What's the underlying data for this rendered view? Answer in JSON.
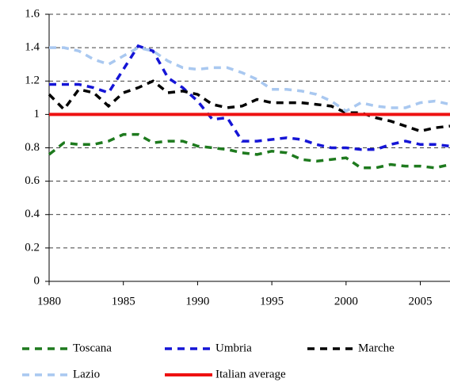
{
  "chart_data": {
    "type": "line",
    "x": [
      1980,
      1981,
      1982,
      1983,
      1984,
      1985,
      1986,
      1987,
      1988,
      1989,
      1990,
      1991,
      1992,
      1993,
      1994,
      1995,
      1996,
      1997,
      1998,
      1999,
      2000,
      2001,
      2002,
      2003,
      2004,
      2005,
      2006,
      2007
    ],
    "series": [
      {
        "name": "Toscana",
        "color": "#1e7a1e",
        "dashed": true,
        "values": [
          0.76,
          0.83,
          0.82,
          0.82,
          0.84,
          0.88,
          0.88,
          0.83,
          0.84,
          0.84,
          0.81,
          0.8,
          0.79,
          0.77,
          0.76,
          0.78,
          0.77,
          0.73,
          0.72,
          0.73,
          0.74,
          0.68,
          0.68,
          0.7,
          0.69,
          0.69,
          0.68,
          0.7
        ]
      },
      {
        "name": "Umbria",
        "color": "#1515d6",
        "dashed": true,
        "values": [
          1.18,
          1.18,
          1.18,
          1.16,
          1.13,
          1.27,
          1.41,
          1.38,
          1.22,
          1.16,
          1.08,
          0.97,
          0.98,
          0.84,
          0.84,
          0.85,
          0.86,
          0.85,
          0.82,
          0.8,
          0.8,
          0.79,
          0.79,
          0.82,
          0.84,
          0.82,
          0.82,
          0.81
        ]
      },
      {
        "name": "Marche",
        "color": "#000000",
        "dashed": true,
        "values": [
          1.12,
          1.03,
          1.15,
          1.13,
          1.05,
          1.13,
          1.16,
          1.2,
          1.13,
          1.14,
          1.12,
          1.06,
          1.04,
          1.05,
          1.09,
          1.07,
          1.07,
          1.07,
          1.06,
          1.05,
          1.01,
          1.01,
          0.98,
          0.96,
          0.93,
          0.9,
          0.92,
          0.93
        ]
      },
      {
        "name": "Lazio",
        "color": "#a9c8f0",
        "dashed": true,
        "values": [
          1.4,
          1.4,
          1.38,
          1.33,
          1.3,
          1.35,
          1.4,
          1.38,
          1.32,
          1.28,
          1.27,
          1.28,
          1.28,
          1.25,
          1.21,
          1.15,
          1.15,
          1.14,
          1.12,
          1.08,
          1.02,
          1.07,
          1.05,
          1.04,
          1.04,
          1.07,
          1.08,
          1.06
        ]
      },
      {
        "name": "Italian average",
        "color": "#ee1111",
        "dashed": false,
        "values": [
          1,
          1,
          1,
          1,
          1,
          1,
          1,
          1,
          1,
          1,
          1,
          1,
          1,
          1,
          1,
          1,
          1,
          1,
          1,
          1,
          1,
          1,
          1,
          1,
          1,
          1,
          1,
          1
        ]
      }
    ],
    "xlim": [
      1980,
      2007
    ],
    "xticks": [
      1980,
      1985,
      1990,
      1995,
      2000,
      2005
    ],
    "ylim": [
      0,
      1.6
    ],
    "yticks": [
      0,
      0.2,
      0.4,
      0.6,
      0.8,
      1,
      1.2,
      1.4,
      1.6
    ],
    "grid": true
  }
}
